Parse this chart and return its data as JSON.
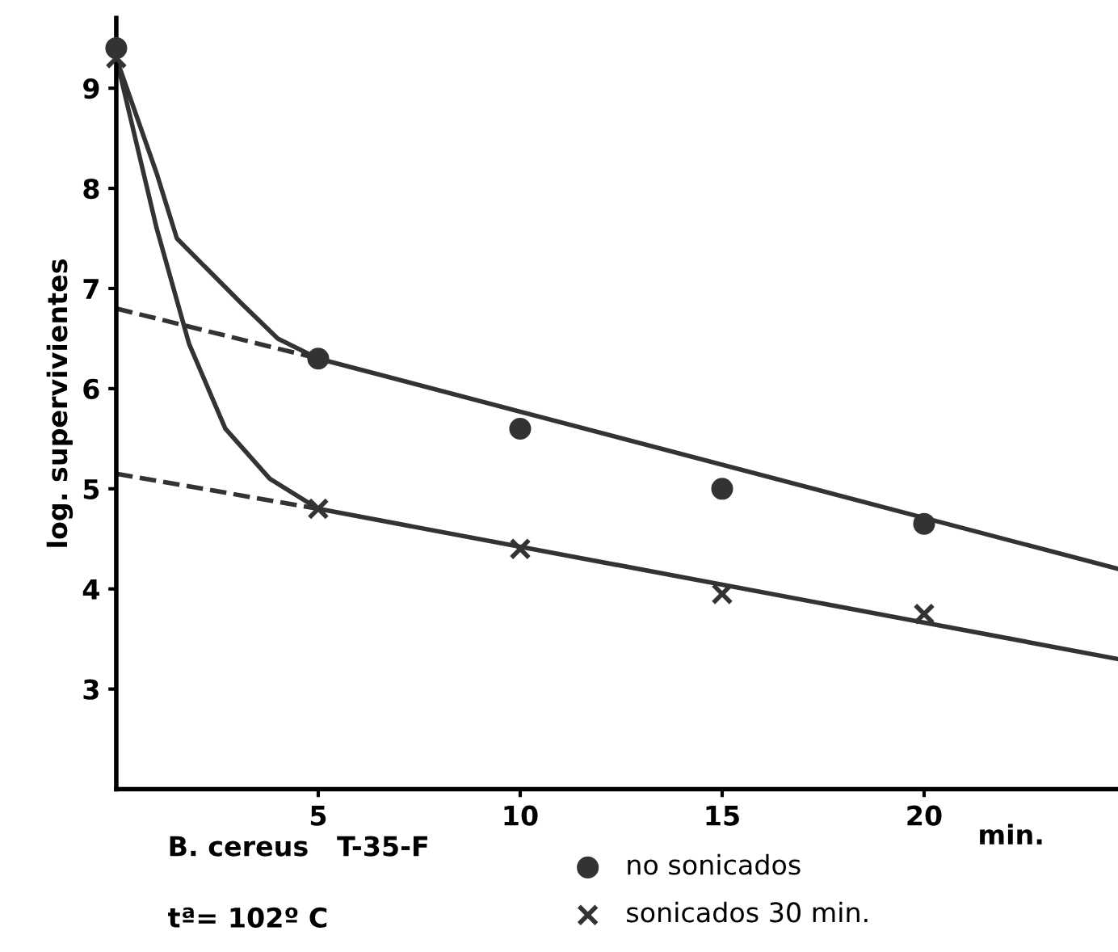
{
  "chart_data": {
    "type": "scatter",
    "xlabel": "min.",
    "ylabel": "log. supervivientes",
    "xlim": [
      0,
      24.8
    ],
    "ylim": [
      2.0,
      9.7
    ],
    "xticks": [
      5,
      10,
      15,
      20
    ],
    "yticks": [
      3,
      4,
      5,
      6,
      7,
      8,
      9
    ],
    "grid": false,
    "legend": "bottom",
    "annotations": [
      "B. cereus   T-35-F",
      "tª= 102º C"
    ],
    "series": [
      {
        "name": "no sonicados",
        "marker": "circle",
        "color": "#333333",
        "x": [
          0,
          5,
          10,
          15,
          20
        ],
        "values": [
          9.4,
          6.3,
          5.6,
          5.0,
          4.65
        ]
      },
      {
        "name": "sonicados 30 min.",
        "marker": "cross",
        "color": "#333333",
        "x": [
          0,
          5,
          10,
          15,
          20
        ],
        "values": [
          9.3,
          4.8,
          4.4,
          3.95,
          3.75
        ]
      },
      {
        "type": "line",
        "line_style": "solid",
        "color": "#333333",
        "x": [
          0,
          1.0,
          1.5,
          3.1,
          4.0,
          5,
          24.8
        ],
        "values": [
          9.3,
          8.15,
          7.5,
          6.85,
          6.5,
          6.3,
          4.2
        ]
      },
      {
        "type": "line",
        "line_style": "solid",
        "color": "#333333",
        "x": [
          0,
          1.0,
          1.8,
          2.7,
          3.8,
          5,
          24.8
        ],
        "values": [
          9.3,
          7.6,
          6.45,
          5.6,
          5.1,
          4.8,
          3.3
        ]
      },
      {
        "type": "line",
        "line_style": "dashed",
        "color": "#333333",
        "x": [
          0,
          5
        ],
        "values": [
          6.8,
          6.3
        ]
      },
      {
        "type": "line",
        "line_style": "dashed",
        "color": "#333333",
        "x": [
          0,
          5
        ],
        "values": [
          5.15,
          4.8
        ]
      }
    ]
  }
}
